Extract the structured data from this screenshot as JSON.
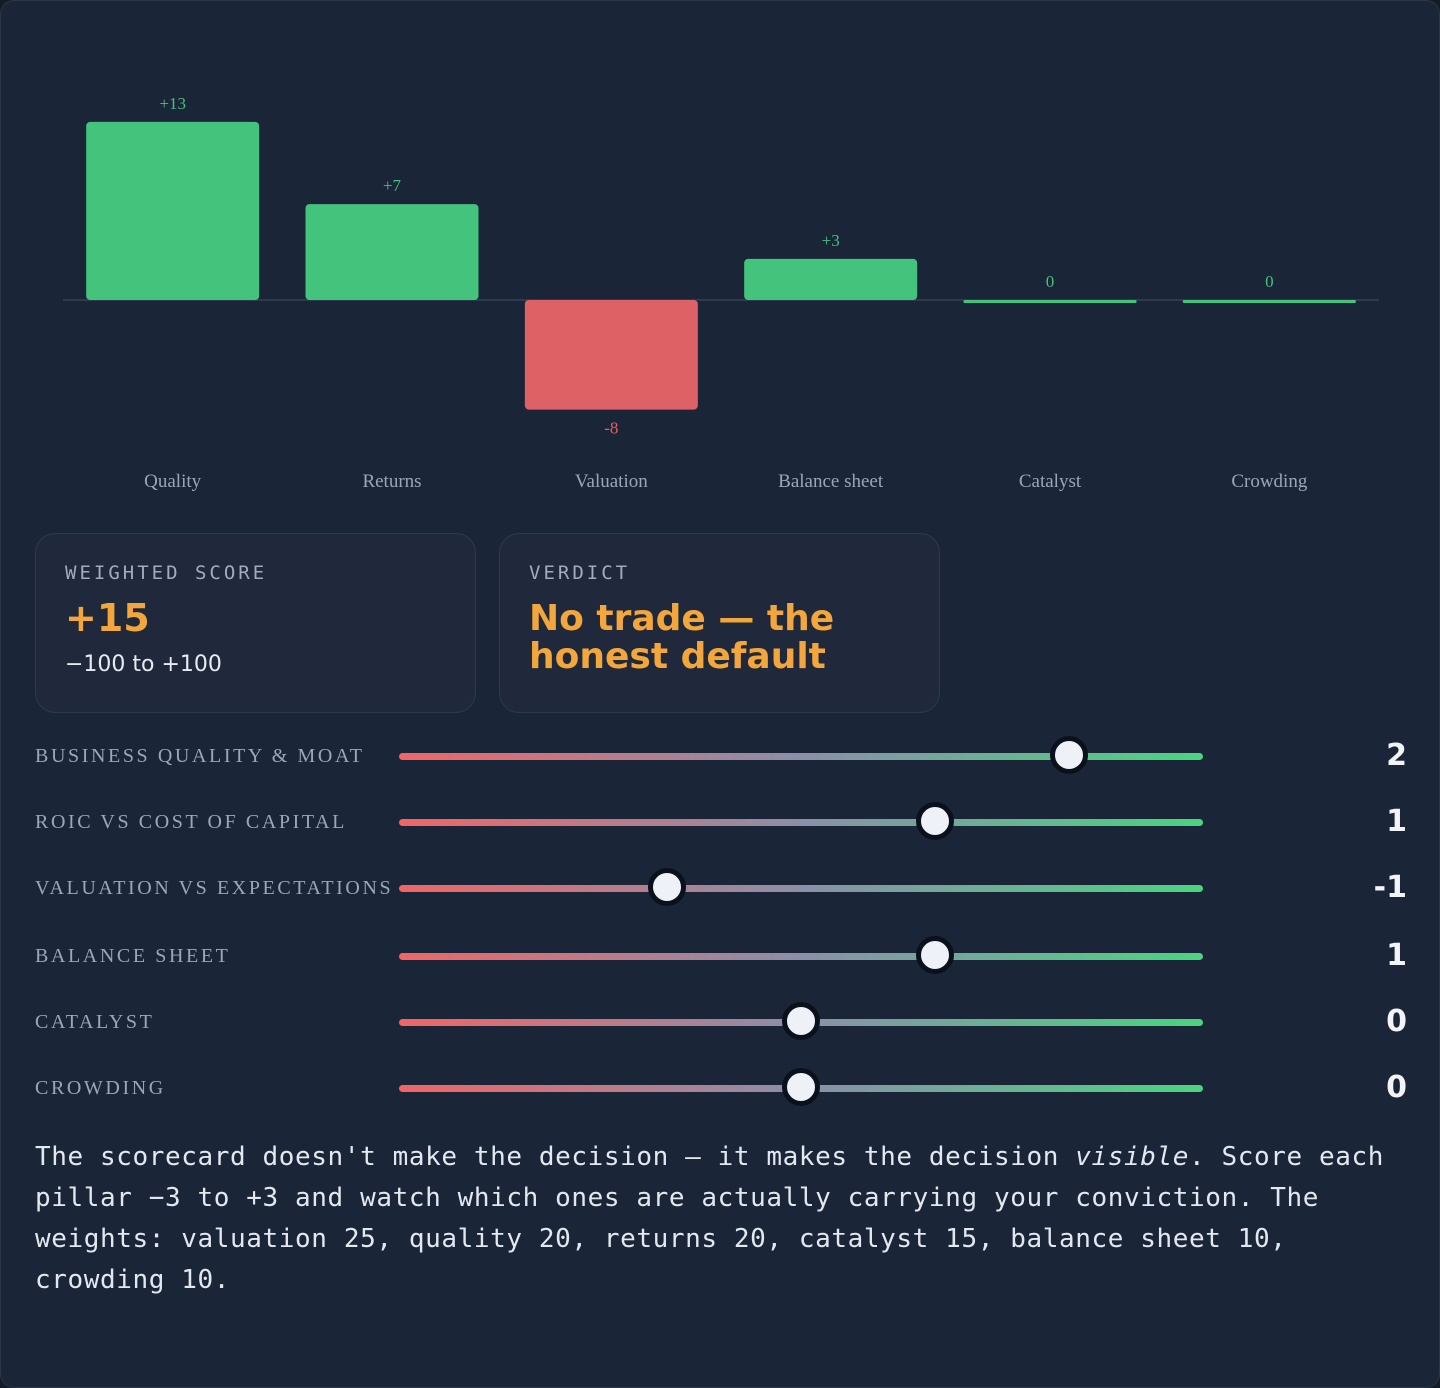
{
  "chart_data": {
    "type": "bar",
    "categories": [
      "Quality",
      "Returns",
      "Valuation",
      "Balance sheet",
      "Catalyst",
      "Crowding"
    ],
    "values": [
      13,
      7,
      -8,
      3,
      0,
      0
    ],
    "value_labels": [
      "+13",
      "+7",
      "-8",
      "+3",
      "0",
      "0"
    ],
    "colors": {
      "positive": "#43c37c",
      "negative": "#de6165",
      "axis": "#2f3a4c",
      "tick": "#9aa7b8"
    },
    "title": "",
    "xlabel": "",
    "ylabel": "",
    "grid": false
  },
  "score_card": {
    "label": "WEIGHTED SCORE",
    "value": "+15",
    "range": "−100 to +100"
  },
  "verdict_card": {
    "label": "VERDICT",
    "line1": "No trade — the",
    "line2": "honest default"
  },
  "sliders": {
    "min": -3,
    "max": 3,
    "items": [
      {
        "label": "BUSINESS QUALITY & MOAT",
        "value": 2,
        "display": "2"
      },
      {
        "label": "ROIC VS COST OF CAPITAL",
        "value": 1,
        "display": "1"
      },
      {
        "label": "VALUATION VS EXPECTATIONS",
        "value": -1,
        "display": "-1"
      },
      {
        "label": "BALANCE SHEET",
        "value": 1,
        "display": "1"
      },
      {
        "label": "CATALYST",
        "value": 0,
        "display": "0"
      },
      {
        "label": "CROWDING",
        "value": 0,
        "display": "0"
      }
    ]
  },
  "note": {
    "part1": "The scorecard doesn't make the decision — it makes the decision ",
    "emph": "visible",
    "part2": ". Score each pillar −3 to +3 and watch which ones are actually carrying your conviction. The weights: valuation 25, quality 20, returns 20, catalyst 15, balance sheet 10, crowding 10."
  },
  "colors": {
    "accent": "#f2a63b",
    "background": "#1b2538",
    "card": "#1f293b"
  }
}
